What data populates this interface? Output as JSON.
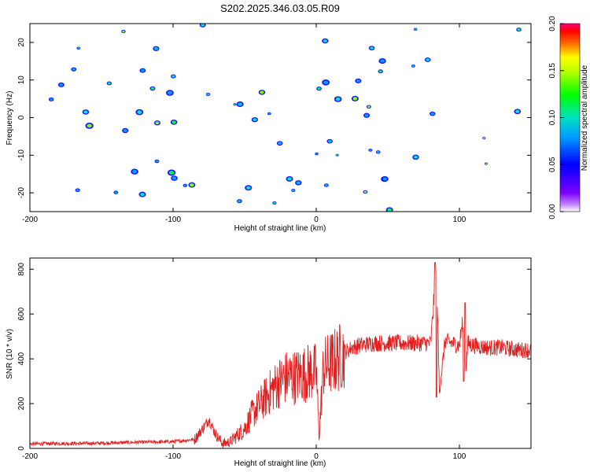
{
  "title": "S202.2025.346.03.05.R09",
  "chart_data": [
    {
      "type": "heatmap",
      "name": "spectrogram",
      "xlabel": "Height of straight line (km)",
      "ylabel": "Frequency (Hz)",
      "xlim": [
        -200,
        150
      ],
      "ylim": [
        -25,
        25
      ],
      "xticks": [
        "-200",
        "-100",
        "0",
        "100"
      ],
      "yticks": [
        "-20",
        "-10",
        "0",
        "10",
        "20"
      ],
      "colorbar": {
        "label": "Normalized spectral amplitude",
        "range": [
          0.0,
          0.2
        ],
        "ticks": [
          "0.00",
          "0.05",
          "0.10",
          "0.15",
          "0.20"
        ],
        "colors": [
          "#ffffff",
          "#7a00ff",
          "#0000ff",
          "#00c0ff",
          "#00ff00",
          "#ffff00",
          "#ff0000",
          "#ff00aa"
        ]
      },
      "description_values": {
        "typical_amplitude": 0.03,
        "max_amplitude": 0.12
      }
    },
    {
      "type": "line",
      "name": "snr",
      "xlabel": "Height of straight line (km)",
      "ylabel": "SNR (10 * v/v)",
      "xlim": [
        -200,
        150
      ],
      "ylim": [
        0,
        850
      ],
      "xticks": [
        "-200",
        "-100",
        "0",
        "100"
      ],
      "yticks": [
        "0",
        "200",
        "400",
        "600",
        "800"
      ],
      "color": "#e02020",
      "series": [
        {
          "name": "SNR",
          "x": [
            -200,
            -180,
            -160,
            -140,
            -120,
            -100,
            -85,
            -78,
            -75,
            -70,
            -65,
            -60,
            -55,
            -50,
            -45,
            -40,
            -35,
            -30,
            -25,
            -20,
            -15,
            -10,
            -5,
            0,
            2,
            5,
            10,
            15,
            20,
            25,
            30,
            40,
            50,
            60,
            70,
            80,
            82,
            84,
            86,
            90,
            95,
            100,
            102,
            104,
            106,
            110,
            120,
            130,
            140,
            150
          ],
          "y": [
            20,
            22,
            22,
            25,
            28,
            30,
            40,
            100,
            130,
            60,
            20,
            30,
            60,
            90,
            150,
            190,
            230,
            270,
            300,
            320,
            320,
            330,
            340,
            340,
            60,
            360,
            380,
            400,
            430,
            450,
            460,
            470,
            470,
            470,
            470,
            470,
            650,
            820,
            250,
            480,
            470,
            460,
            560,
            320,
            470,
            460,
            450,
            450,
            440,
            440
          ]
        }
      ],
      "spikes": [
        {
          "x": 83,
          "y": 830
        },
        {
          "x": 84,
          "y": 230
        },
        {
          "x": 104,
          "y": 650
        },
        {
          "x": 103,
          "y": 300
        }
      ]
    }
  ]
}
